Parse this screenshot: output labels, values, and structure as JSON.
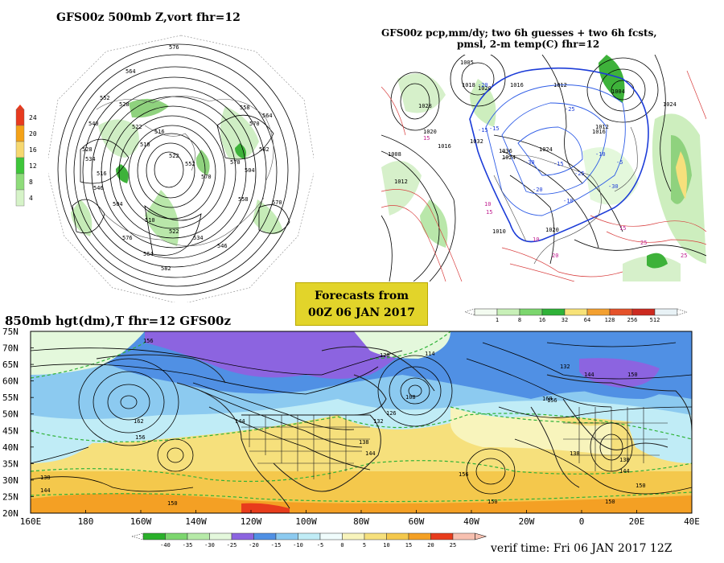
{
  "panels": {
    "top_left": {
      "title": "GFS00z   500mb  Z,vort     fhr=12",
      "vort_scale": {
        "ticks": [
          "24",
          "20",
          "16",
          "12",
          "8",
          "4"
        ],
        "colors": [
          "#e83a1e",
          "#f4a218",
          "#f6d870",
          "#3ec63a",
          "#8edc7a",
          "#d6f3c8"
        ]
      },
      "contour_labels": [
        "576",
        "564",
        "552",
        "540",
        "528",
        "516",
        "504",
        "510",
        "522",
        "534",
        "546",
        "558",
        "570",
        "582",
        "504",
        "510",
        "516",
        "522",
        "552",
        "570",
        "564",
        "558",
        "546",
        "534",
        "528",
        "522",
        "570",
        "576",
        "582",
        "564",
        "570"
      ]
    },
    "top_right": {
      "title_line1": "GFS00z pcp,mm/dy; two 6h guesses + two 6h fcsts,",
      "title_line2": "pmsl, 2-m temp(C)  fhr=12",
      "pressure_labels": [
        "1028",
        "1020",
        "1008",
        "1012",
        "1016",
        "1024",
        "1032",
        "1036",
        "1005",
        "1018",
        "1020",
        "1016",
        "1012",
        "1024",
        "1004",
        "1016",
        "1012",
        "1010",
        "1020",
        "1024"
      ],
      "temp_labels": [
        "-20",
        "-15",
        "-25",
        "-30",
        "-20",
        "-15",
        "-10",
        "-5",
        "-25",
        "-15",
        "-30",
        "-10"
      ],
      "warm_labels": [
        "15",
        "10",
        "15",
        "10",
        "15",
        "20",
        "25",
        "25"
      ]
    },
    "forecast_box": {
      "line1": "Forecasts from",
      "line2": "00Z 06 JAN 2017"
    },
    "pcp_scale": {
      "ticks": [
        "1",
        "8",
        "16",
        "32",
        "64",
        "128",
        "256",
        "512"
      ],
      "colors": [
        "#f3fbf0",
        "#c8f0b8",
        "#7cd66e",
        "#2fb238",
        "#f7e278",
        "#f3a030",
        "#e5522a",
        "#cc2a20",
        "#e8f2f6"
      ]
    },
    "bottom": {
      "title": "850mb hgt(dm),T  fhr=12 GFS00z",
      "lat_labels": [
        "75N",
        "70N",
        "65N",
        "60N",
        "55N",
        "50N",
        "45N",
        "40N",
        "35N",
        "30N",
        "25N",
        "20N"
      ],
      "lon_labels": [
        "160E",
        "180",
        "160W",
        "140W",
        "120W",
        "100W",
        "80W",
        "60W",
        "40W",
        "20W",
        "0",
        "20E",
        "40E"
      ],
      "height_labels": [
        "156",
        "120",
        "114",
        "108",
        "126",
        "132",
        "138",
        "144",
        "162",
        "156",
        "138",
        "144",
        "150",
        "144",
        "150",
        "156",
        "150",
        "132",
        "144",
        "150",
        "156",
        "138",
        "168",
        "150",
        "138",
        "144"
      ],
      "temp_scale": {
        "ticks": [
          "-40",
          "-35",
          "-30",
          "-25",
          "-20",
          "-15",
          "-10",
          "-5",
          "0",
          "5",
          "10",
          "15",
          "20",
          "25"
        ],
        "colors": [
          "#2ab02a",
          "#7cd66e",
          "#b6eaa8",
          "#e4f8dc",
          "#8c64e0",
          "#5090e4",
          "#8ccaf0",
          "#c0ecf6",
          "#f0fcfc",
          "#f8f4bc",
          "#f6e07c",
          "#f4c84c",
          "#f4a024",
          "#e83c1c",
          "#f7c0b0"
        ]
      },
      "verif_time": "verif time: Fri 06 JAN 2017 12Z"
    }
  }
}
